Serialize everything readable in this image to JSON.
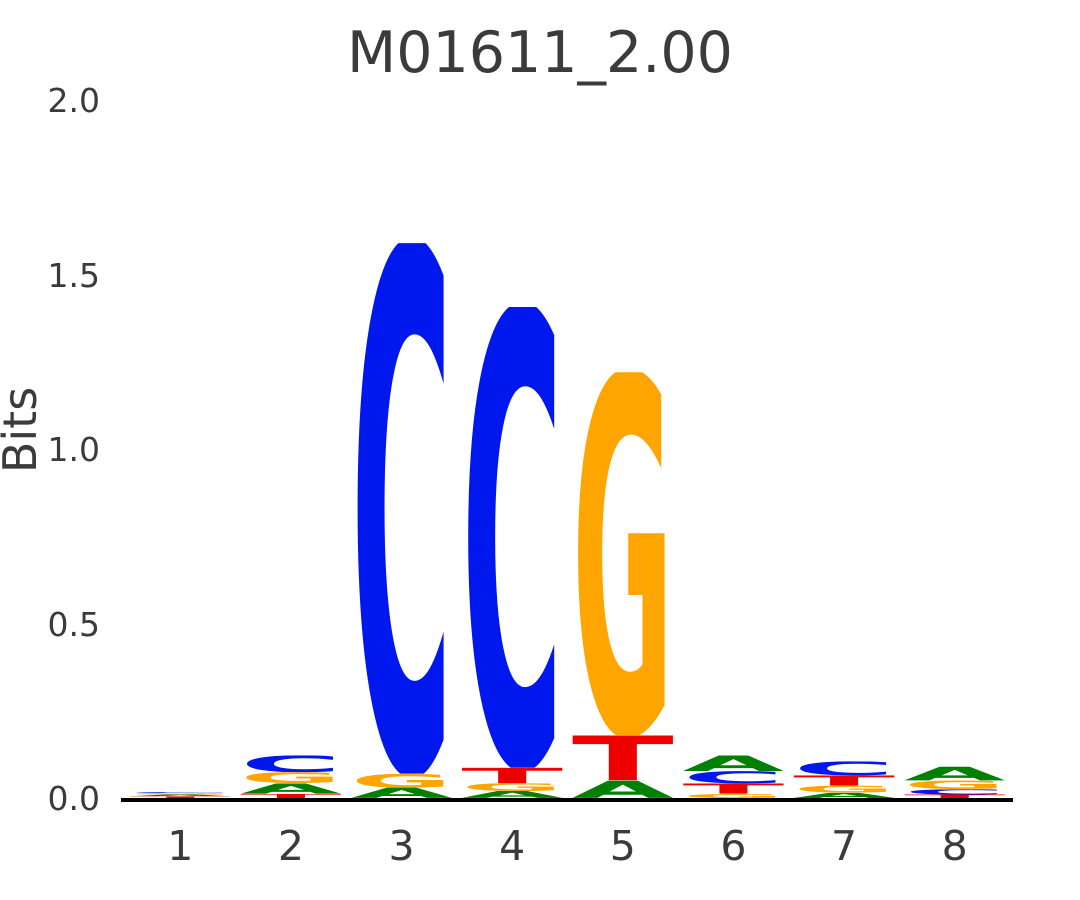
{
  "chart_data": {
    "type": "sequence-logo",
    "title": "M01611_2.00",
    "ylabel": "Bits",
    "ylim": [
      0,
      2
    ],
    "y_ticks": [
      0.0,
      0.5,
      1.0,
      1.5,
      2.0
    ],
    "categories": [
      "1",
      "2",
      "3",
      "4",
      "5",
      "6",
      "7",
      "8"
    ],
    "legend": "none",
    "grid": false,
    "colors": {
      "A": "#008000",
      "C": "#0018ee",
      "G": "#ffa500",
      "T": "#ee0000"
    },
    "positions": [
      {
        "pos": 1,
        "stack": [
          {
            "letter": "T",
            "bits": 0.005
          },
          {
            "letter": "A",
            "bits": 0.005
          },
          {
            "letter": "G",
            "bits": 0.004
          },
          {
            "letter": "C",
            "bits": 0.003
          }
        ]
      },
      {
        "pos": 2,
        "stack": [
          {
            "letter": "T",
            "bits": 0.012
          },
          {
            "letter": "A",
            "bits": 0.03
          },
          {
            "letter": "G",
            "bits": 0.032
          },
          {
            "letter": "C",
            "bits": 0.048
          }
        ]
      },
      {
        "pos": 3,
        "stack": [
          {
            "letter": "A",
            "bits": 0.03
          },
          {
            "letter": "G",
            "bits": 0.04
          },
          {
            "letter": "C",
            "bits": 1.52
          }
        ]
      },
      {
        "pos": 4,
        "stack": [
          {
            "letter": "A",
            "bits": 0.02
          },
          {
            "letter": "G",
            "bits": 0.022
          },
          {
            "letter": "T",
            "bits": 0.045
          },
          {
            "letter": "C",
            "bits": 1.32
          }
        ]
      },
      {
        "pos": 5,
        "stack": [
          {
            "letter": "A",
            "bits": 0.05
          },
          {
            "letter": "T",
            "bits": 0.13
          },
          {
            "letter": "G",
            "bits": 1.04
          }
        ]
      },
      {
        "pos": 6,
        "stack": [
          {
            "letter": "G",
            "bits": 0.012
          },
          {
            "letter": "T",
            "bits": 0.03
          },
          {
            "letter": "C",
            "bits": 0.035
          },
          {
            "letter": "A",
            "bits": 0.045
          }
        ]
      },
      {
        "pos": 7,
        "stack": [
          {
            "letter": "A",
            "bits": 0.015
          },
          {
            "letter": "G",
            "bits": 0.02
          },
          {
            "letter": "T",
            "bits": 0.03
          },
          {
            "letter": "C",
            "bits": 0.04
          }
        ]
      },
      {
        "pos": 8,
        "stack": [
          {
            "letter": "T",
            "bits": 0.01
          },
          {
            "letter": "C",
            "bits": 0.015
          },
          {
            "letter": "G",
            "bits": 0.025
          },
          {
            "letter": "A",
            "bits": 0.04
          }
        ]
      }
    ]
  }
}
